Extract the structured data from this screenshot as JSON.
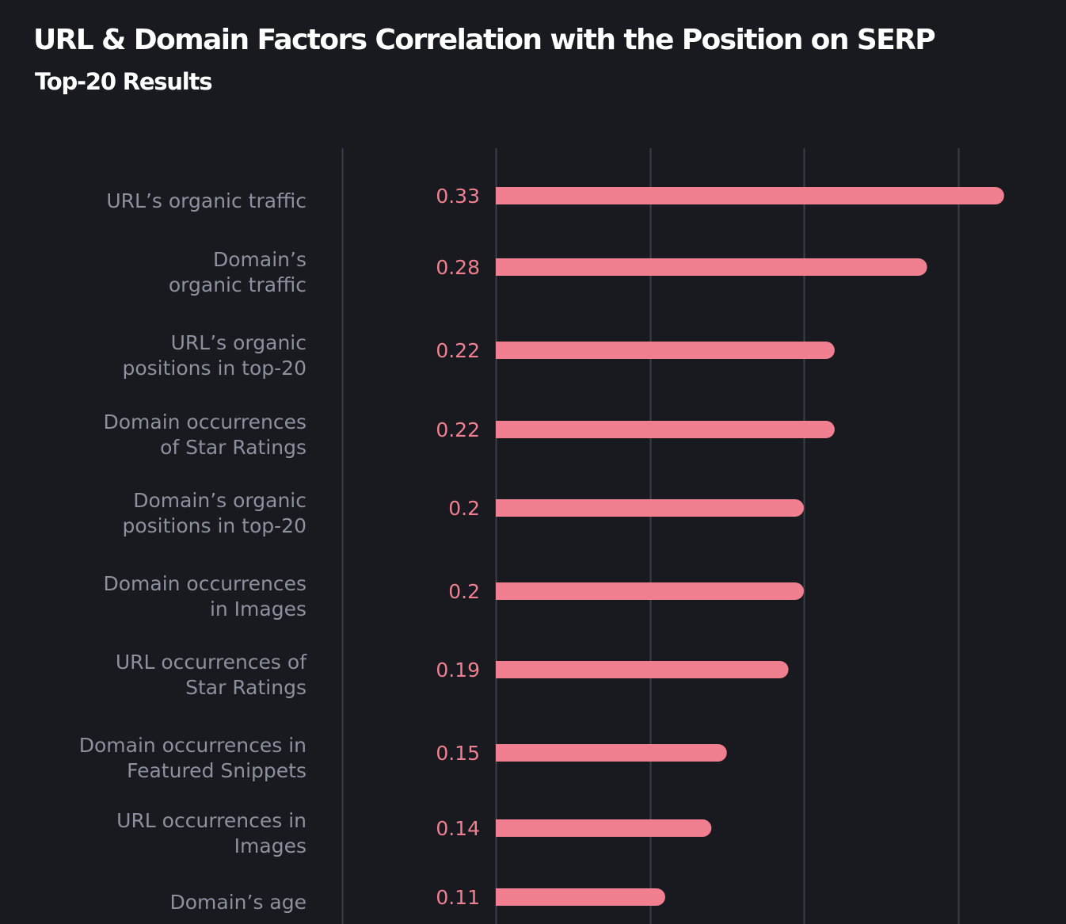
{
  "chart_data": {
    "type": "bar",
    "orientation": "horizontal",
    "title": "URL & Domain Factors Correlation with the Position on SERP",
    "subtitle": "Top-20 Results",
    "categories": [
      [
        "URL’s organic traffic"
      ],
      [
        "Domain’s",
        "organic traffic"
      ],
      [
        "URL’s organic",
        "positions in top-20"
      ],
      [
        "Domain occurrences",
        "of Star Ratings"
      ],
      [
        "Domain’s organic",
        "positions in top-20"
      ],
      [
        "Domain occurrences",
        "in Images"
      ],
      [
        "URL occurrences of",
        "Star Ratings"
      ],
      [
        "Domain occurrences in",
        "Featured Snippets"
      ],
      [
        "URL occurrences in",
        "Images"
      ],
      [
        "Domain’s age"
      ]
    ],
    "values": [
      0.33,
      0.28,
      0.22,
      0.22,
      0.2,
      0.2,
      0.19,
      0.15,
      0.14,
      0.11
    ],
    "value_labels": [
      "0.33",
      "0.28",
      "0.22",
      "0.22",
      "0.2",
      "0.2",
      "0.19",
      "0.15",
      "0.14",
      "0.11"
    ],
    "xlim": [
      -0.1,
      0.35
    ],
    "gridlines_at": [
      -0.1,
      0,
      0.1,
      0.2,
      0.3
    ],
    "xlabel": "",
    "ylabel": "",
    "grid": true,
    "bar_color": "#f0808f",
    "value_label_color": "#f0808f",
    "grid_color": "#3c3f4a"
  }
}
